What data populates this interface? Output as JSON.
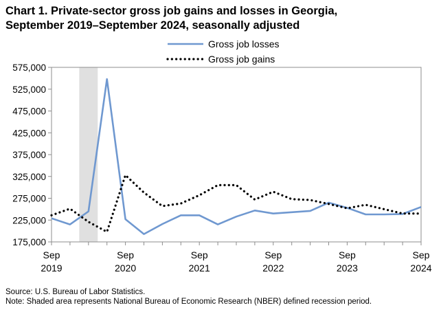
{
  "chart_data": {
    "type": "line",
    "title": "Chart 1. Private-sector gross job gains and losses in Georgia, September 2019–September 2024, seasonally adjusted",
    "title_lines": [
      "Chart 1. Private-sector gross job gains and losses in Georgia,",
      "September 2019–September 2024, seasonally adjusted"
    ],
    "xlabel": "",
    "ylabel": "",
    "ylim": [
      175000,
      575000
    ],
    "y_ticks": [
      "175,000",
      "225,000",
      "275,000",
      "325,000",
      "375,000",
      "425,000",
      "475,000",
      "525,000",
      "575,000"
    ],
    "y_tick_values": [
      175000,
      225000,
      275000,
      325000,
      375000,
      425000,
      475000,
      525000,
      575000
    ],
    "x_ticks": [
      {
        "month": "Sep",
        "year": "2019",
        "quarter_index": 0
      },
      {
        "month": "Sep",
        "year": "2020",
        "quarter_index": 4
      },
      {
        "month": "Sep",
        "year": "2021",
        "quarter_index": 8
      },
      {
        "month": "Sep",
        "year": "2022",
        "quarter_index": 12
      },
      {
        "month": "Sep",
        "year": "2023",
        "quarter_index": 16
      },
      {
        "month": "Sep",
        "year": "2024",
        "quarter_index": 20
      }
    ],
    "x": [
      "Sep 2019",
      "Dec 2019",
      "Mar 2020",
      "Jun 2020",
      "Sep 2020",
      "Dec 2020",
      "Mar 2021",
      "Jun 2021",
      "Sep 2021",
      "Dec 2021",
      "Mar 2022",
      "Jun 2022",
      "Sep 2022",
      "Dec 2022",
      "Mar 2023",
      "Jun 2023",
      "Sep 2023",
      "Dec 2023",
      "Mar 2024",
      "Jun 2024",
      "Sep 2024"
    ],
    "series": [
      {
        "name": "Gross job losses",
        "style": "solid",
        "color": "#6f98d0",
        "values": [
          229000,
          215000,
          245000,
          548000,
          227000,
          193000,
          216000,
          236000,
          236000,
          215000,
          233000,
          247000,
          240000,
          243000,
          246000,
          265000,
          253000,
          238000,
          238000,
          239000,
          255000
        ]
      },
      {
        "name": "Gross job gains",
        "style": "dotted",
        "color": "#000000",
        "values": [
          236000,
          251000,
          221000,
          198000,
          328000,
          288000,
          257000,
          263000,
          282000,
          305000,
          305000,
          272000,
          290000,
          273000,
          271000,
          262000,
          252000,
          260000,
          250000,
          240000,
          240000
        ]
      }
    ],
    "recession_shading": {
      "from_quarter_index": 1.5,
      "to_quarter_index": 2.5,
      "color": "#e0e0e0"
    },
    "grid": false,
    "legend_position": "top-center"
  },
  "footnotes": {
    "source": "Source: U.S. Bureau of Labor Statistics.",
    "note": "Note: Shaded area represents National Bureau of Economic Research (NBER) defined recession period."
  }
}
